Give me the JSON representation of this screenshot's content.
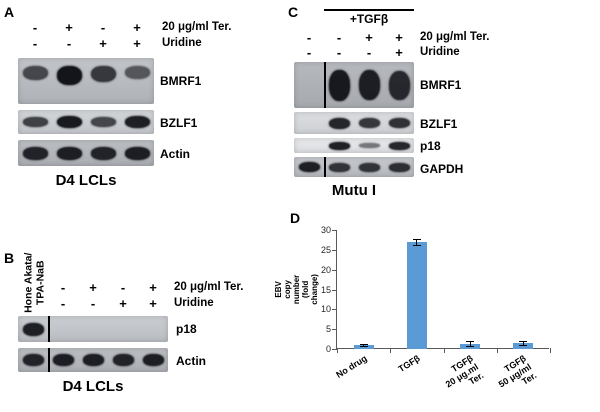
{
  "figure": {
    "panel_a": {
      "label": "A",
      "rows": [
        {
          "signs": [
            "-",
            "+",
            "-",
            "+"
          ],
          "label": "20 μg/ml Ter."
        },
        {
          "signs": [
            "-",
            "-",
            "+",
            "+"
          ],
          "label": "Uridine"
        }
      ],
      "blots": [
        {
          "name": "BMRF1",
          "lanes": [
            0.5,
            1,
            0.65,
            0.35
          ]
        },
        {
          "name": "BZLF1",
          "lanes": [
            0.6,
            0.95,
            0.55,
            0.9
          ]
        },
        {
          "name": "Actin",
          "lanes": [
            0.85,
            0.9,
            0.85,
            0.9
          ]
        }
      ],
      "caption": "D4 LCLs"
    },
    "panel_b": {
      "label": "B",
      "lane_label": "Hone Akata/\nTPA-NaB",
      "rows": [
        {
          "signs": [
            "-",
            "+",
            "-",
            "+"
          ],
          "label": "20 μg/ml Ter."
        },
        {
          "signs": [
            "-",
            "-",
            "+",
            "+"
          ],
          "label": "Uridine"
        }
      ],
      "blots": [
        {
          "name": "p18",
          "lanes": [
            0.9,
            0,
            0,
            0,
            0
          ]
        },
        {
          "name": "Actin",
          "lanes": [
            0.85,
            0.9,
            0.9,
            0.85,
            0.9
          ]
        }
      ],
      "caption": "D4 LCLs"
    },
    "panel_c": {
      "label": "C",
      "group_label": "+TGFβ",
      "rows": [
        {
          "signs": [
            "-",
            "-",
            "+",
            "+"
          ],
          "label": "20 μg/ml Ter."
        },
        {
          "signs": [
            "-",
            "-",
            "-",
            "+"
          ],
          "label": "Uridine"
        }
      ],
      "blots": [
        {
          "name": "BMRF1",
          "lanes": [
            0,
            0.95,
            0.9,
            0.8
          ]
        },
        {
          "name": "BZLF1",
          "lanes": [
            0,
            0.85,
            0.7,
            0.75
          ]
        },
        {
          "name": "p18",
          "lanes": [
            0,
            0.9,
            0.2,
            0.85
          ]
        },
        {
          "name": "GAPDH",
          "lanes": [
            0.9,
            0.7,
            0.7,
            0.75
          ]
        }
      ],
      "caption": "Mutu I"
    },
    "panel_d": {
      "label": "D"
    }
  },
  "chart_data": {
    "type": "bar",
    "categories": [
      "No drug",
      "TGFβ",
      "TGFβ\n20 μg.ml\nTer.",
      "TGFβ\n50 μg/ml\nTer."
    ],
    "values": [
      1,
      27,
      1.3,
      1.4
    ],
    "errors": [
      0.2,
      0.8,
      0.6,
      0.5
    ],
    "title": "",
    "xlabel": "",
    "ylabel": "EBV copy number (fold change)",
    "ylim": [
      0,
      30
    ],
    "yticks": [
      0,
      5,
      10,
      15,
      20,
      25,
      30
    ],
    "bar_color": "#5b9bd5",
    "grid": false,
    "legend": false
  }
}
